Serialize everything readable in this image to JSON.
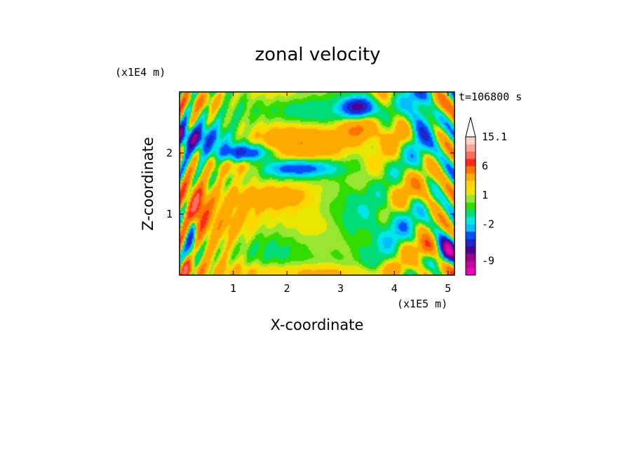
{
  "chart_data": {
    "type": "heatmap",
    "title": "zonal velocity",
    "xlabel": "X-coordinate",
    "ylabel": "Z-coordinate",
    "x_unit": "(x1E5 m)",
    "y_unit": "(x1E4 m)",
    "time_label": "t=106800 s",
    "xlim": [
      0,
      5.12
    ],
    "ylim": [
      0,
      3.0
    ],
    "x_ticks": [
      1,
      2,
      3,
      4,
      5
    ],
    "x_tick_labels": [
      "1",
      "2",
      "3",
      "4",
      "5"
    ],
    "y_ticks": [
      1,
      2
    ],
    "y_tick_labels": [
      "1",
      "2"
    ],
    "colorbar": {
      "levels": [
        -12,
        -10.5,
        -9,
        -7.5,
        -6,
        -4.5,
        -3,
        -2,
        -1,
        0,
        0.5,
        1,
        1.5,
        2,
        4,
        6,
        8,
        10,
        12,
        15.1
      ],
      "colors": [
        "#e600b8",
        "#c8009b",
        "#96008c",
        "#4b0096",
        "#1e28c8",
        "#0050ff",
        "#00beff",
        "#00e6e6",
        "#00dc78",
        "#32dc00",
        "#96e632",
        "#e6e600",
        "#ffd700",
        "#ffaa00",
        "#ff7300",
        "#ff2a1a",
        "#ff6e5a",
        "#ffa596",
        "#ffd2c8"
      ],
      "tick_labels": [
        "15.1",
        "6",
        "1",
        "-2",
        "-9"
      ],
      "tick_values": [
        15.1,
        6,
        1,
        -2,
        -9
      ],
      "extend": "max"
    },
    "field_features": [
      {
        "x": 0.15,
        "z": 2.25,
        "value": -7,
        "sx": 0.45,
        "sz": 0.15
      },
      {
        "x": 1.2,
        "z": 2.0,
        "value": -7,
        "sx": 0.35,
        "sz": 0.1
      },
      {
        "x": 2.2,
        "z": 1.75,
        "value": -6,
        "sx": 0.5,
        "sz": 0.1
      },
      {
        "x": 3.35,
        "z": 2.75,
        "value": -8,
        "sx": 0.22,
        "sz": 0.12
      },
      {
        "x": 4.5,
        "z": 2.6,
        "value": -6,
        "sx": 0.18,
        "sz": 0.35
      },
      {
        "x": 5.0,
        "z": 0.4,
        "value": -9,
        "sx": 0.12,
        "sz": 0.15
      },
      {
        "x": 0.22,
        "z": 0.6,
        "value": -5,
        "sx": 0.07,
        "sz": 0.35
      },
      {
        "x": 2.5,
        "z": 2.7,
        "value": -1.5,
        "sx": 0.7,
        "sz": 0.15
      },
      {
        "x": 2.4,
        "z": 0.6,
        "value": -0.5,
        "sx": 1.1,
        "sz": 0.3
      },
      {
        "x": 3.8,
        "z": 0.7,
        "value": -1,
        "sx": 0.6,
        "sz": 0.4
      },
      {
        "x": 0.3,
        "z": 1.1,
        "value": 6,
        "sx": 0.15,
        "sz": 0.25
      },
      {
        "x": 1.1,
        "z": 1.8,
        "value": 3,
        "sx": 0.4,
        "sz": 0.15
      },
      {
        "x": 2.5,
        "z": 2.2,
        "value": 3,
        "sx": 0.7,
        "sz": 0.2
      },
      {
        "x": 3.35,
        "z": 2.4,
        "value": 3.5,
        "sx": 0.25,
        "sz": 0.15
      },
      {
        "x": 0.8,
        "z": 0.8,
        "value": 2.5,
        "sx": 0.5,
        "sz": 0.25
      },
      {
        "x": 1.6,
        "z": 1.3,
        "value": 2.5,
        "sx": 0.6,
        "sz": 0.15
      },
      {
        "x": 4.6,
        "z": 0.45,
        "value": 4,
        "sx": 0.1,
        "sz": 0.12
      },
      {
        "x": 0.15,
        "z": 0.1,
        "value": 5,
        "sx": 0.12,
        "sz": 0.12
      },
      {
        "x": 0.4,
        "z": 2.85,
        "value": 3,
        "sx": 0.3,
        "sz": 0.12
      },
      {
        "x": 4.8,
        "z": 2.8,
        "value": 3,
        "sx": 0.25,
        "sz": 0.15
      },
      {
        "x": 2.8,
        "z": 0.05,
        "value": 1.5,
        "sx": 2.0,
        "sz": 0.1
      }
    ]
  }
}
